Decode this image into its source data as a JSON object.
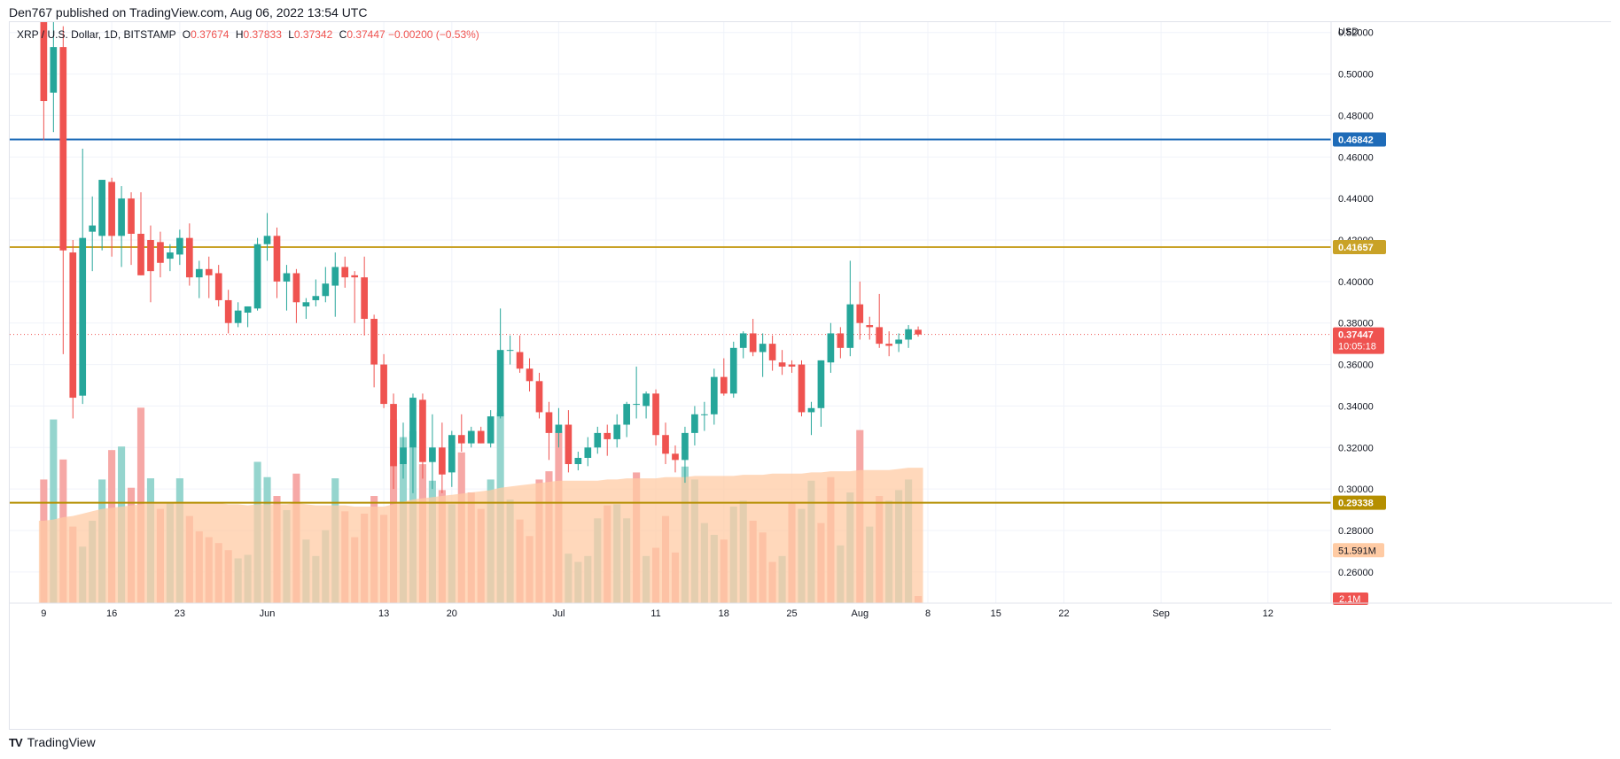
{
  "caption": "Den767 published on TradingView.com, Aug 06, 2022 13:54 UTC",
  "footer_brand": "TradingView",
  "footer_logo": "TV",
  "legend": {
    "symbol": "XRP / U.S. Dollar, 1D, BITSTAMP",
    "open_label": "O",
    "open_value": "0.37674",
    "high_label": "H",
    "high_value": "0.37833",
    "low_label": "L",
    "low_value": "0.37342",
    "close_label": "C",
    "close_value": "0.37447",
    "change_value": "−0.00200 (−0.53%)"
  },
  "colors": {
    "up": "#26a69a",
    "down": "#ef5350",
    "vol_up": "#8fd3cb",
    "vol_down": "#f5a3a1",
    "vol_ma": "#ffcba4",
    "blue_line": "#1e6bb8",
    "gold_line": "#c9a227",
    "dark_gold_line": "#b58f00",
    "grid": "#f0f3fa",
    "text": "#131722"
  },
  "chart_data": {
    "type": "candlestick",
    "symbol": "XRP / U.S. Dollar",
    "interval": "1D",
    "exchange": "BITSTAMP",
    "currency_label": "USD",
    "y_ticks": [
      "0.52000",
      "0.50000",
      "0.48000",
      "0.46000",
      "0.44000",
      "0.42000",
      "0.40000",
      "0.38000",
      "0.36000",
      "0.34000",
      "0.32000",
      "0.30000",
      "0.28000",
      "0.26000"
    ],
    "ylim": [
      0.245,
      0.525
    ],
    "x_ticks": [
      {
        "label": "9",
        "day": 0
      },
      {
        "label": "16",
        "day": 7
      },
      {
        "label": "23",
        "day": 14
      },
      {
        "label": "Jun",
        "day": 23
      },
      {
        "label": "13",
        "day": 35
      },
      {
        "label": "20",
        "day": 42
      },
      {
        "label": "Jul",
        "day": 53
      },
      {
        "label": "11",
        "day": 63
      },
      {
        "label": "18",
        "day": 70
      },
      {
        "label": "25",
        "day": 77
      },
      {
        "label": "Aug",
        "day": 84
      },
      {
        "label": "8",
        "day": 91
      },
      {
        "label": "15",
        "day": 98
      },
      {
        "label": "22",
        "day": 105
      },
      {
        "label": "Sep",
        "day": 115
      },
      {
        "label": "12",
        "day": 126
      }
    ],
    "x_range_days": [
      -3.5,
      132.5
    ],
    "candles": [
      {
        "o": 0.53,
        "h": 0.56,
        "l": 0.468,
        "c": 0.487
      },
      {
        "o": 0.491,
        "h": 0.53,
        "l": 0.472,
        "c": 0.513
      },
      {
        "o": 0.513,
        "h": 0.523,
        "l": 0.365,
        "c": 0.415
      },
      {
        "o": 0.414,
        "h": 0.42,
        "l": 0.334,
        "c": 0.344
      },
      {
        "o": 0.345,
        "h": 0.464,
        "l": 0.341,
        "c": 0.421
      },
      {
        "o": 0.424,
        "h": 0.441,
        "l": 0.405,
        "c": 0.427
      },
      {
        "o": 0.422,
        "h": 0.449,
        "l": 0.415,
        "c": 0.449
      },
      {
        "o": 0.448,
        "h": 0.45,
        "l": 0.412,
        "c": 0.422
      },
      {
        "o": 0.422,
        "h": 0.446,
        "l": 0.407,
        "c": 0.44
      },
      {
        "o": 0.44,
        "h": 0.443,
        "l": 0.408,
        "c": 0.423
      },
      {
        "o": 0.423,
        "h": 0.443,
        "l": 0.403,
        "c": 0.403
      },
      {
        "o": 0.42,
        "h": 0.427,
        "l": 0.39,
        "c": 0.405
      },
      {
        "o": 0.419,
        "h": 0.424,
        "l": 0.402,
        "c": 0.409
      },
      {
        "o": 0.411,
        "h": 0.418,
        "l": 0.405,
        "c": 0.414
      },
      {
        "o": 0.413,
        "h": 0.425,
        "l": 0.408,
        "c": 0.421
      },
      {
        "o": 0.421,
        "h": 0.428,
        "l": 0.398,
        "c": 0.402
      },
      {
        "o": 0.402,
        "h": 0.41,
        "l": 0.392,
        "c": 0.406
      },
      {
        "o": 0.406,
        "h": 0.412,
        "l": 0.392,
        "c": 0.403
      },
      {
        "o": 0.404,
        "h": 0.408,
        "l": 0.388,
        "c": 0.391
      },
      {
        "o": 0.391,
        "h": 0.396,
        "l": 0.375,
        "c": 0.38
      },
      {
        "o": 0.38,
        "h": 0.39,
        "l": 0.378,
        "c": 0.386
      },
      {
        "o": 0.385,
        "h": 0.388,
        "l": 0.378,
        "c": 0.388
      },
      {
        "o": 0.387,
        "h": 0.421,
        "l": 0.386,
        "c": 0.418
      },
      {
        "o": 0.418,
        "h": 0.433,
        "l": 0.41,
        "c": 0.422
      },
      {
        "o": 0.422,
        "h": 0.426,
        "l": 0.392,
        "c": 0.4
      },
      {
        "o": 0.4,
        "h": 0.408,
        "l": 0.386,
        "c": 0.404
      },
      {
        "o": 0.404,
        "h": 0.406,
        "l": 0.38,
        "c": 0.39
      },
      {
        "o": 0.388,
        "h": 0.392,
        "l": 0.382,
        "c": 0.39
      },
      {
        "o": 0.391,
        "h": 0.401,
        "l": 0.388,
        "c": 0.393
      },
      {
        "o": 0.393,
        "h": 0.407,
        "l": 0.39,
        "c": 0.399
      },
      {
        "o": 0.398,
        "h": 0.414,
        "l": 0.383,
        "c": 0.407
      },
      {
        "o": 0.407,
        "h": 0.412,
        "l": 0.397,
        "c": 0.402
      },
      {
        "o": 0.403,
        "h": 0.405,
        "l": 0.38,
        "c": 0.402
      },
      {
        "o": 0.402,
        "h": 0.412,
        "l": 0.374,
        "c": 0.382
      },
      {
        "o": 0.382,
        "h": 0.384,
        "l": 0.349,
        "c": 0.36
      },
      {
        "o": 0.36,
        "h": 0.365,
        "l": 0.339,
        "c": 0.341
      },
      {
        "o": 0.341,
        "h": 0.346,
        "l": 0.3,
        "c": 0.311
      },
      {
        "o": 0.312,
        "h": 0.332,
        "l": 0.305,
        "c": 0.32
      },
      {
        "o": 0.32,
        "h": 0.346,
        "l": 0.298,
        "c": 0.344
      },
      {
        "o": 0.343,
        "h": 0.346,
        "l": 0.305,
        "c": 0.313
      },
      {
        "o": 0.313,
        "h": 0.336,
        "l": 0.3,
        "c": 0.32
      },
      {
        "o": 0.32,
        "h": 0.332,
        "l": 0.298,
        "c": 0.307
      },
      {
        "o": 0.308,
        "h": 0.328,
        "l": 0.301,
        "c": 0.326
      },
      {
        "o": 0.326,
        "h": 0.336,
        "l": 0.318,
        "c": 0.322
      },
      {
        "o": 0.322,
        "h": 0.33,
        "l": 0.32,
        "c": 0.328
      },
      {
        "o": 0.328,
        "h": 0.33,
        "l": 0.322,
        "c": 0.322
      },
      {
        "o": 0.322,
        "h": 0.338,
        "l": 0.32,
        "c": 0.335
      },
      {
        "o": 0.335,
        "h": 0.387,
        "l": 0.334,
        "c": 0.367
      },
      {
        "o": 0.367,
        "h": 0.374,
        "l": 0.36,
        "c": 0.367
      },
      {
        "o": 0.366,
        "h": 0.374,
        "l": 0.356,
        "c": 0.358
      },
      {
        "o": 0.358,
        "h": 0.363,
        "l": 0.347,
        "c": 0.352
      },
      {
        "o": 0.352,
        "h": 0.356,
        "l": 0.334,
        "c": 0.337
      },
      {
        "o": 0.337,
        "h": 0.342,
        "l": 0.314,
        "c": 0.327
      },
      {
        "o": 0.327,
        "h": 0.339,
        "l": 0.32,
        "c": 0.331
      },
      {
        "o": 0.331,
        "h": 0.338,
        "l": 0.308,
        "c": 0.312
      },
      {
        "o": 0.312,
        "h": 0.318,
        "l": 0.309,
        "c": 0.315
      },
      {
        "o": 0.315,
        "h": 0.325,
        "l": 0.311,
        "c": 0.32
      },
      {
        "o": 0.32,
        "h": 0.33,
        "l": 0.317,
        "c": 0.327
      },
      {
        "o": 0.327,
        "h": 0.331,
        "l": 0.316,
        "c": 0.324
      },
      {
        "o": 0.324,
        "h": 0.336,
        "l": 0.32,
        "c": 0.331
      },
      {
        "o": 0.331,
        "h": 0.342,
        "l": 0.325,
        "c": 0.341
      },
      {
        "o": 0.341,
        "h": 0.359,
        "l": 0.334,
        "c": 0.341
      },
      {
        "o": 0.34,
        "h": 0.347,
        "l": 0.334,
        "c": 0.346
      },
      {
        "o": 0.346,
        "h": 0.348,
        "l": 0.321,
        "c": 0.326
      },
      {
        "o": 0.326,
        "h": 0.332,
        "l": 0.312,
        "c": 0.317
      },
      {
        "o": 0.317,
        "h": 0.321,
        "l": 0.308,
        "c": 0.314
      },
      {
        "o": 0.314,
        "h": 0.33,
        "l": 0.303,
        "c": 0.327
      },
      {
        "o": 0.327,
        "h": 0.34,
        "l": 0.321,
        "c": 0.336
      },
      {
        "o": 0.336,
        "h": 0.342,
        "l": 0.328,
        "c": 0.336
      },
      {
        "o": 0.336,
        "h": 0.358,
        "l": 0.331,
        "c": 0.354
      },
      {
        "o": 0.354,
        "h": 0.363,
        "l": 0.345,
        "c": 0.346
      },
      {
        "o": 0.346,
        "h": 0.371,
        "l": 0.344,
        "c": 0.368
      },
      {
        "o": 0.368,
        "h": 0.376,
        "l": 0.363,
        "c": 0.375
      },
      {
        "o": 0.375,
        "h": 0.382,
        "l": 0.364,
        "c": 0.366
      },
      {
        "o": 0.366,
        "h": 0.375,
        "l": 0.354,
        "c": 0.37
      },
      {
        "o": 0.37,
        "h": 0.374,
        "l": 0.357,
        "c": 0.362
      },
      {
        "o": 0.361,
        "h": 0.367,
        "l": 0.355,
        "c": 0.359
      },
      {
        "o": 0.36,
        "h": 0.362,
        "l": 0.356,
        "c": 0.359
      },
      {
        "o": 0.36,
        "h": 0.362,
        "l": 0.335,
        "c": 0.337
      },
      {
        "o": 0.337,
        "h": 0.342,
        "l": 0.326,
        "c": 0.339
      },
      {
        "o": 0.339,
        "h": 0.362,
        "l": 0.33,
        "c": 0.362
      },
      {
        "o": 0.361,
        "h": 0.38,
        "l": 0.356,
        "c": 0.375
      },
      {
        "o": 0.375,
        "h": 0.378,
        "l": 0.363,
        "c": 0.368
      },
      {
        "o": 0.368,
        "h": 0.41,
        "l": 0.364,
        "c": 0.389
      },
      {
        "o": 0.389,
        "h": 0.4,
        "l": 0.372,
        "c": 0.38
      },
      {
        "o": 0.379,
        "h": 0.383,
        "l": 0.372,
        "c": 0.378
      },
      {
        "o": 0.378,
        "h": 0.394,
        "l": 0.368,
        "c": 0.37
      },
      {
        "o": 0.37,
        "h": 0.376,
        "l": 0.364,
        "c": 0.369
      },
      {
        "o": 0.37,
        "h": 0.375,
        "l": 0.366,
        "c": 0.372
      },
      {
        "o": 0.372,
        "h": 0.379,
        "l": 0.368,
        "c": 0.377
      },
      {
        "o": 0.37674,
        "h": 0.37833,
        "l": 0.37342,
        "c": 0.37447
      }
    ],
    "volumes": [
      {
        "v": 1.05,
        "up": false
      },
      {
        "v": 1.56,
        "up": true
      },
      {
        "v": 1.22,
        "up": false
      },
      {
        "v": 0.65,
        "up": false
      },
      {
        "v": 0.48,
        "up": true
      },
      {
        "v": 0.7,
        "up": true
      },
      {
        "v": 1.05,
        "up": true
      },
      {
        "v": 1.3,
        "up": false
      },
      {
        "v": 1.33,
        "up": true
      },
      {
        "v": 0.98,
        "up": false
      },
      {
        "v": 1.66,
        "up": false
      },
      {
        "v": 1.06,
        "up": true
      },
      {
        "v": 0.8,
        "up": false
      },
      {
        "v": 0.85,
        "up": true
      },
      {
        "v": 1.06,
        "up": true
      },
      {
        "v": 0.74,
        "up": false
      },
      {
        "v": 0.61,
        "up": false
      },
      {
        "v": 0.56,
        "up": false
      },
      {
        "v": 0.51,
        "up": false
      },
      {
        "v": 0.45,
        "up": false
      },
      {
        "v": 0.38,
        "up": true
      },
      {
        "v": 0.41,
        "up": true
      },
      {
        "v": 1.2,
        "up": true
      },
      {
        "v": 1.07,
        "up": true
      },
      {
        "v": 0.91,
        "up": false
      },
      {
        "v": 0.79,
        "up": true
      },
      {
        "v": 1.1,
        "up": false
      },
      {
        "v": 0.54,
        "up": true
      },
      {
        "v": 0.4,
        "up": true
      },
      {
        "v": 0.62,
        "up": true
      },
      {
        "v": 1.06,
        "up": true
      },
      {
        "v": 0.78,
        "up": false
      },
      {
        "v": 0.56,
        "up": false
      },
      {
        "v": 0.76,
        "up": false
      },
      {
        "v": 0.91,
        "up": false
      },
      {
        "v": 0.75,
        "up": false
      },
      {
        "v": 1.56,
        "up": false
      },
      {
        "v": 1.41,
        "up": true
      },
      {
        "v": 1.46,
        "up": true
      },
      {
        "v": 1.18,
        "up": false
      },
      {
        "v": 1.04,
        "up": true
      },
      {
        "v": 0.96,
        "up": false
      },
      {
        "v": 0.84,
        "up": true
      },
      {
        "v": 1.28,
        "up": false
      },
      {
        "v": 0.94,
        "up": false
      },
      {
        "v": 0.8,
        "up": false
      },
      {
        "v": 1.05,
        "up": true
      },
      {
        "v": 1.62,
        "up": true
      },
      {
        "v": 0.88,
        "up": true
      },
      {
        "v": 0.71,
        "up": false
      },
      {
        "v": 0.57,
        "up": false
      },
      {
        "v": 1.05,
        "up": false
      },
      {
        "v": 1.12,
        "up": false
      },
      {
        "v": 1.46,
        "up": false
      },
      {
        "v": 0.42,
        "up": true
      },
      {
        "v": 0.35,
        "up": true
      },
      {
        "v": 0.4,
        "up": true
      },
      {
        "v": 0.72,
        "up": true
      },
      {
        "v": 0.83,
        "up": false
      },
      {
        "v": 0.84,
        "up": true
      },
      {
        "v": 0.72,
        "up": true
      },
      {
        "v": 1.11,
        "up": false
      },
      {
        "v": 0.4,
        "up": true
      },
      {
        "v": 0.47,
        "up": false
      },
      {
        "v": 0.74,
        "up": false
      },
      {
        "v": 0.43,
        "up": false
      },
      {
        "v": 1.16,
        "up": true
      },
      {
        "v": 1.05,
        "up": true
      },
      {
        "v": 0.68,
        "up": true
      },
      {
        "v": 0.58,
        "up": true
      },
      {
        "v": 0.54,
        "up": false
      },
      {
        "v": 0.82,
        "up": true
      },
      {
        "v": 0.87,
        "up": true
      },
      {
        "v": 0.7,
        "up": false
      },
      {
        "v": 0.6,
        "up": false
      },
      {
        "v": 0.35,
        "up": false
      },
      {
        "v": 0.4,
        "up": true
      },
      {
        "v": 0.86,
        "up": false
      },
      {
        "v": 0.8,
        "up": true
      },
      {
        "v": 1.04,
        "up": true
      },
      {
        "v": 0.68,
        "up": false
      },
      {
        "v": 1.07,
        "up": false
      },
      {
        "v": 0.49,
        "up": true
      },
      {
        "v": 0.94,
        "up": true
      },
      {
        "v": 1.47,
        "up": false
      },
      {
        "v": 0.65,
        "up": true
      },
      {
        "v": 0.91,
        "up": false
      },
      {
        "v": 0.87,
        "up": true
      },
      {
        "v": 0.96,
        "up": true
      },
      {
        "v": 1.05,
        "up": true
      },
      {
        "v": 0.06,
        "up": false
      }
    ],
    "volume_ma": [
      0.7,
      0.71,
      0.73,
      0.74,
      0.76,
      0.78,
      0.8,
      0.81,
      0.82,
      0.83,
      0.84,
      0.85,
      0.86,
      0.86,
      0.86,
      0.86,
      0.86,
      0.85,
      0.85,
      0.84,
      0.84,
      0.83,
      0.84,
      0.84,
      0.84,
      0.84,
      0.85,
      0.84,
      0.83,
      0.83,
      0.83,
      0.83,
      0.82,
      0.82,
      0.82,
      0.82,
      0.84,
      0.86,
      0.88,
      0.89,
      0.9,
      0.91,
      0.92,
      0.93,
      0.94,
      0.95,
      0.96,
      0.98,
      0.99,
      1.0,
      1.01,
      1.02,
      1.03,
      1.04,
      1.04,
      1.04,
      1.04,
      1.04,
      1.05,
      1.05,
      1.06,
      1.06,
      1.06,
      1.06,
      1.07,
      1.07,
      1.07,
      1.08,
      1.08,
      1.08,
      1.08,
      1.08,
      1.09,
      1.09,
      1.09,
      1.1,
      1.1,
      1.1,
      1.1,
      1.11,
      1.11,
      1.12,
      1.12,
      1.12,
      1.13,
      1.13,
      1.13,
      1.13,
      1.14,
      1.15,
      1.15
    ],
    "horizontal_levels": [
      {
        "value": 0.46842,
        "label": "0.46842",
        "color_key": "blue_line"
      },
      {
        "value": 0.41657,
        "label": "0.41657",
        "color_key": "gold_line"
      },
      {
        "value": 0.29338,
        "label": "0.29338",
        "color_key": "dark_gold_line"
      }
    ],
    "last_price": {
      "value": 0.37447,
      "label": "0.37447",
      "countdown": "10:05:18"
    },
    "volume_ma_badge": "51.591M",
    "volume_badge": "2.1M",
    "grid": true
  }
}
